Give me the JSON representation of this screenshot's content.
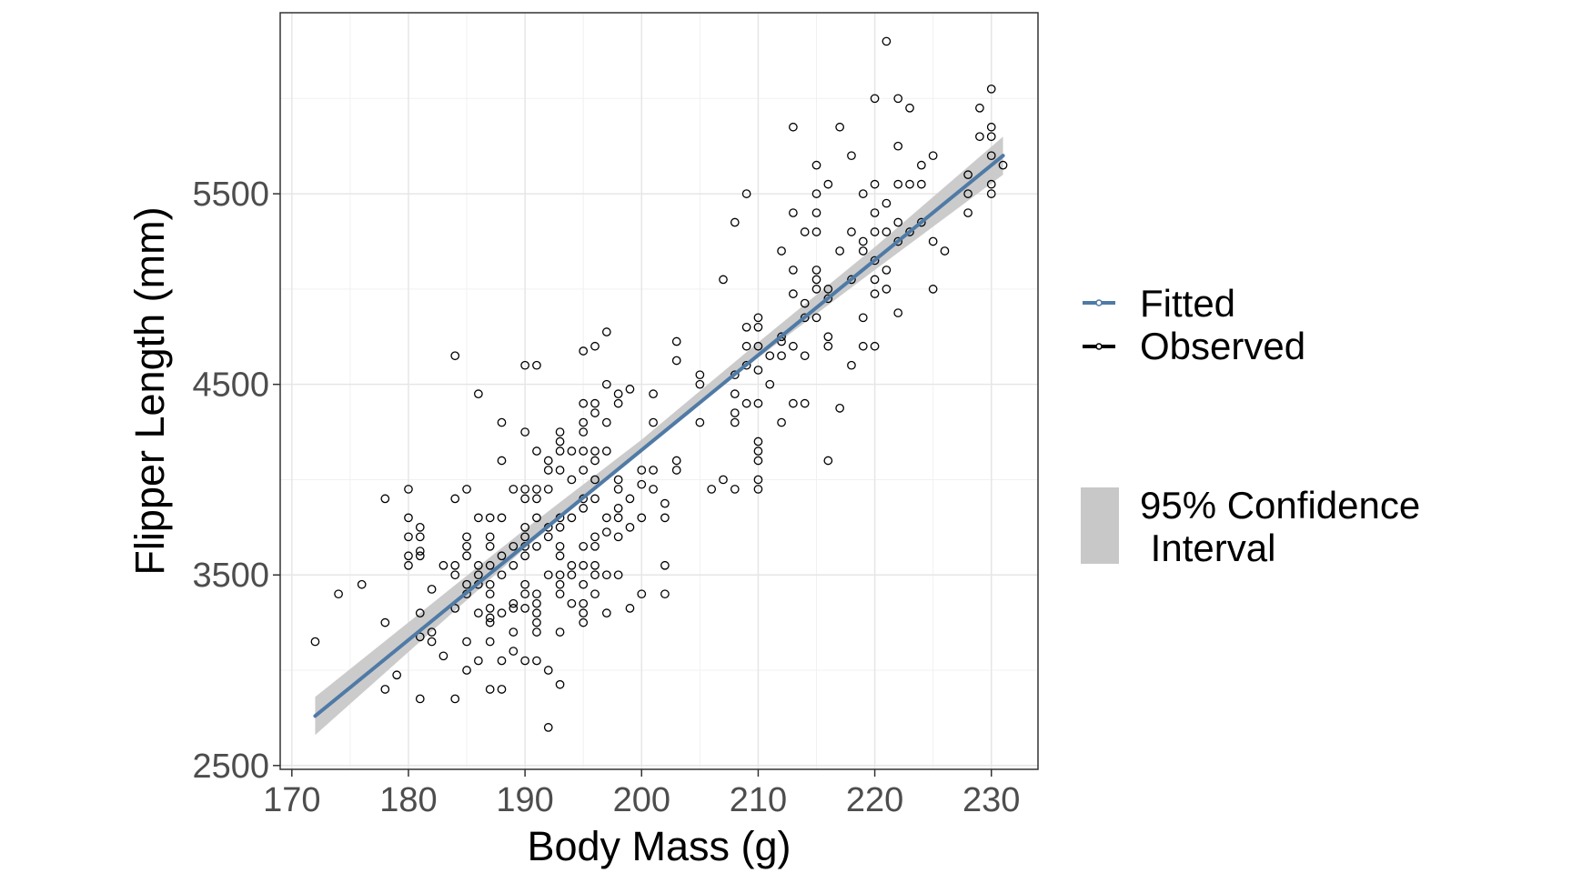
{
  "colors": {
    "fitted": "#4f7aa6",
    "observed": "#000000",
    "ci": "#c8c8c8",
    "grid": "#e6e6e6"
  },
  "chart_data": {
    "type": "scatter",
    "xlabel": "Body Mass (g)",
    "ylabel": "Flipper Length (mm)",
    "xlim": [
      169,
      234
    ],
    "ylim": [
      2480,
      6450
    ],
    "xticks": [
      170,
      180,
      190,
      200,
      210,
      220,
      230
    ],
    "yticks": [
      2500,
      3500,
      4500,
      5500
    ],
    "grid": true,
    "legend_placement": "right",
    "legend": {
      "fitted": "Fitted",
      "observed": "Observed",
      "ci_line1": "95% Confidence",
      "ci_line2": " Interval"
    },
    "fitted_line": {
      "name": "Fitted",
      "x": [
        172,
        231
      ],
      "y": [
        2760,
        5700
      ]
    },
    "confidence_interval": {
      "name": "95% Confidence Interval",
      "x": [
        172,
        190,
        200,
        210,
        220,
        231
      ],
      "lower": [
        2660,
        3640,
        4150,
        4640,
        5100,
        5600
      ],
      "upper": [
        2860,
        3740,
        4210,
        4720,
        5220,
        5800
      ]
    },
    "observed": {
      "name": "Observed",
      "points": [
        [
          172,
          3150
        ],
        [
          174,
          3400
        ],
        [
          176,
          3450
        ],
        [
          178,
          3900
        ],
        [
          178,
          3250
        ],
        [
          178,
          2900
        ],
        [
          179,
          2975
        ],
        [
          180,
          3950
        ],
        [
          180,
          3800
        ],
        [
          180,
          3700
        ],
        [
          180,
          3600
        ],
        [
          180,
          3550
        ],
        [
          181,
          3750
        ],
        [
          181,
          3700
        ],
        [
          181,
          3625
        ],
        [
          181,
          3600
        ],
        [
          181,
          3300
        ],
        [
          181,
          3175
        ],
        [
          181,
          2850
        ],
        [
          182,
          3425
        ],
        [
          182,
          3200
        ],
        [
          182,
          3150
        ],
        [
          183,
          3550
        ],
        [
          183,
          3075
        ],
        [
          184,
          4650
        ],
        [
          184,
          3900
        ],
        [
          184,
          3550
        ],
        [
          184,
          3500
        ],
        [
          184,
          3325
        ],
        [
          184,
          2850
        ],
        [
          185,
          3950
        ],
        [
          185,
          3700
        ],
        [
          185,
          3650
        ],
        [
          185,
          3600
        ],
        [
          185,
          3450
        ],
        [
          185,
          3400
        ],
        [
          185,
          3150
        ],
        [
          185,
          3000
        ],
        [
          186,
          4450
        ],
        [
          186,
          3800
        ],
        [
          186,
          3550
        ],
        [
          186,
          3500
        ],
        [
          186,
          3450
        ],
        [
          186,
          3300
        ],
        [
          186,
          3050
        ],
        [
          187,
          3800
        ],
        [
          187,
          3700
        ],
        [
          187,
          3650
        ],
        [
          187,
          3550
        ],
        [
          187,
          3450
        ],
        [
          187,
          3400
        ],
        [
          187,
          3325
        ],
        [
          187,
          3275
        ],
        [
          187,
          3250
        ],
        [
          187,
          3150
        ],
        [
          187,
          2900
        ],
        [
          188,
          4300
        ],
        [
          188,
          4100
        ],
        [
          188,
          3800
        ],
        [
          188,
          3600
        ],
        [
          188,
          3500
        ],
        [
          188,
          3300
        ],
        [
          188,
          3050
        ],
        [
          188,
          2900
        ],
        [
          189,
          3950
        ],
        [
          189,
          3650
        ],
        [
          189,
          3550
        ],
        [
          189,
          3350
        ],
        [
          189,
          3325
        ],
        [
          189,
          3200
        ],
        [
          189,
          3100
        ],
        [
          190,
          4600
        ],
        [
          190,
          4250
        ],
        [
          190,
          3950
        ],
        [
          190,
          3900
        ],
        [
          190,
          3750
        ],
        [
          190,
          3700
        ],
        [
          190,
          3650
        ],
        [
          190,
          3600
        ],
        [
          190,
          3450
        ],
        [
          190,
          3400
        ],
        [
          190,
          3325
        ],
        [
          190,
          3050
        ],
        [
          191,
          4600
        ],
        [
          191,
          4150
        ],
        [
          191,
          3950
        ],
        [
          191,
          3900
        ],
        [
          191,
          3800
        ],
        [
          191,
          3650
        ],
        [
          191,
          3400
        ],
        [
          191,
          3350
        ],
        [
          191,
          3300
        ],
        [
          191,
          3250
        ],
        [
          191,
          3200
        ],
        [
          191,
          3050
        ],
        [
          192,
          4100
        ],
        [
          192,
          4050
        ],
        [
          192,
          3950
        ],
        [
          192,
          3750
        ],
        [
          192,
          3700
        ],
        [
          192,
          3500
        ],
        [
          192,
          3000
        ],
        [
          192,
          2700
        ],
        [
          193,
          4250
        ],
        [
          193,
          4200
        ],
        [
          193,
          4150
        ],
        [
          193,
          4050
        ],
        [
          193,
          3800
        ],
        [
          193,
          3750
        ],
        [
          193,
          3650
        ],
        [
          193,
          3600
        ],
        [
          193,
          3500
        ],
        [
          193,
          3450
        ],
        [
          193,
          3400
        ],
        [
          193,
          3200
        ],
        [
          193,
          2925
        ],
        [
          194,
          4150
        ],
        [
          194,
          4000
        ],
        [
          194,
          3800
        ],
        [
          194,
          3550
        ],
        [
          194,
          3500
        ],
        [
          194,
          3350
        ],
        [
          195,
          4675
        ],
        [
          195,
          4400
        ],
        [
          195,
          4300
        ],
        [
          195,
          4250
        ],
        [
          195,
          4150
        ],
        [
          195,
          4050
        ],
        [
          195,
          3900
        ],
        [
          195,
          3850
        ],
        [
          195,
          3650
        ],
        [
          195,
          3550
        ],
        [
          195,
          3450
        ],
        [
          195,
          3350
        ],
        [
          195,
          3300
        ],
        [
          195,
          3250
        ],
        [
          196,
          4700
        ],
        [
          196,
          4400
        ],
        [
          196,
          4350
        ],
        [
          196,
          4150
        ],
        [
          196,
          4100
        ],
        [
          196,
          4000
        ],
        [
          196,
          3900
        ],
        [
          196,
          3700
        ],
        [
          196,
          3650
        ],
        [
          196,
          3550
        ],
        [
          196,
          3500
        ],
        [
          196,
          3400
        ],
        [
          197,
          4775
        ],
        [
          197,
          4500
        ],
        [
          197,
          4300
        ],
        [
          197,
          4150
        ],
        [
          197,
          3800
        ],
        [
          197,
          3725
        ],
        [
          197,
          3500
        ],
        [
          197,
          3300
        ],
        [
          198,
          4450
        ],
        [
          198,
          4400
        ],
        [
          198,
          4000
        ],
        [
          198,
          3950
        ],
        [
          198,
          3850
        ],
        [
          198,
          3800
        ],
        [
          198,
          3700
        ],
        [
          198,
          3500
        ],
        [
          199,
          4475
        ],
        [
          199,
          3900
        ],
        [
          199,
          3750
        ],
        [
          199,
          3325
        ],
        [
          200,
          4050
        ],
        [
          200,
          3975
        ],
        [
          200,
          3800
        ],
        [
          200,
          3400
        ],
        [
          201,
          4450
        ],
        [
          201,
          4300
        ],
        [
          201,
          4050
        ],
        [
          201,
          3950
        ],
        [
          202,
          3875
        ],
        [
          202,
          3800
        ],
        [
          202,
          3550
        ],
        [
          202,
          3400
        ],
        [
          203,
          4725
        ],
        [
          203,
          4625
        ],
        [
          203,
          4100
        ],
        [
          203,
          4050
        ],
        [
          205,
          4550
        ],
        [
          205,
          4500
        ],
        [
          205,
          4300
        ],
        [
          206,
          3950
        ],
        [
          207,
          5050
        ],
        [
          207,
          4000
        ],
        [
          208,
          5350
        ],
        [
          208,
          4550
        ],
        [
          208,
          4450
        ],
        [
          208,
          4350
        ],
        [
          208,
          4300
        ],
        [
          208,
          3950
        ],
        [
          209,
          5500
        ],
        [
          209,
          4800
        ],
        [
          209,
          4700
        ],
        [
          209,
          4600
        ],
        [
          209,
          4400
        ],
        [
          210,
          4850
        ],
        [
          210,
          4800
        ],
        [
          210,
          4700
        ],
        [
          210,
          4575
        ],
        [
          210,
          4400
        ],
        [
          210,
          4200
        ],
        [
          210,
          4150
        ],
        [
          210,
          4100
        ],
        [
          210,
          4000
        ],
        [
          210,
          3950
        ],
        [
          211,
          4650
        ],
        [
          211,
          4500
        ],
        [
          212,
          5200
        ],
        [
          212,
          4750
        ],
        [
          212,
          4725
        ],
        [
          212,
          4650
        ],
        [
          212,
          4300
        ],
        [
          213,
          5850
        ],
        [
          213,
          5400
        ],
        [
          213,
          5100
        ],
        [
          213,
          4975
        ],
        [
          213,
          4700
        ],
        [
          213,
          4400
        ],
        [
          214,
          5300
        ],
        [
          214,
          4925
        ],
        [
          214,
          4850
        ],
        [
          214,
          4650
        ],
        [
          214,
          4400
        ],
        [
          215,
          5650
        ],
        [
          215,
          5500
        ],
        [
          215,
          5400
        ],
        [
          215,
          5300
        ],
        [
          215,
          5100
        ],
        [
          215,
          5050
        ],
        [
          215,
          5000
        ],
        [
          215,
          4850
        ],
        [
          216,
          5550
        ],
        [
          216,
          5000
        ],
        [
          216,
          4950
        ],
        [
          216,
          4750
        ],
        [
          216,
          4700
        ],
        [
          216,
          4100
        ],
        [
          217,
          5850
        ],
        [
          217,
          5200
        ],
        [
          217,
          4375
        ],
        [
          218,
          5700
        ],
        [
          218,
          5300
        ],
        [
          218,
          5050
        ],
        [
          218,
          4600
        ],
        [
          219,
          5500
        ],
        [
          219,
          5250
        ],
        [
          219,
          5200
        ],
        [
          219,
          4850
        ],
        [
          219,
          4700
        ],
        [
          220,
          6000
        ],
        [
          220,
          5550
        ],
        [
          220,
          5400
        ],
        [
          220,
          5300
        ],
        [
          220,
          5150
        ],
        [
          220,
          5050
        ],
        [
          220,
          4975
        ],
        [
          220,
          4700
        ],
        [
          221,
          6300
        ],
        [
          221,
          5450
        ],
        [
          221,
          5300
        ],
        [
          221,
          5100
        ],
        [
          221,
          5000
        ],
        [
          222,
          6000
        ],
        [
          222,
          5750
        ],
        [
          222,
          5550
        ],
        [
          222,
          5350
        ],
        [
          222,
          5250
        ],
        [
          222,
          4875
        ],
        [
          223,
          5950
        ],
        [
          223,
          5550
        ],
        [
          223,
          5300
        ],
        [
          224,
          5550
        ],
        [
          224,
          5650
        ],
        [
          224,
          5350
        ],
        [
          225,
          5700
        ],
        [
          225,
          5250
        ],
        [
          225,
          5000
        ],
        [
          226,
          5200
        ],
        [
          228,
          5600
        ],
        [
          228,
          5500
        ],
        [
          228,
          5400
        ],
        [
          229,
          5950
        ],
        [
          229,
          5800
        ],
        [
          230,
          6050
        ],
        [
          230,
          5850
        ],
        [
          230,
          5800
        ],
        [
          230,
          5700
        ],
        [
          230,
          5550
        ],
        [
          230,
          5500
        ],
        [
          231,
          5650
        ]
      ]
    }
  }
}
